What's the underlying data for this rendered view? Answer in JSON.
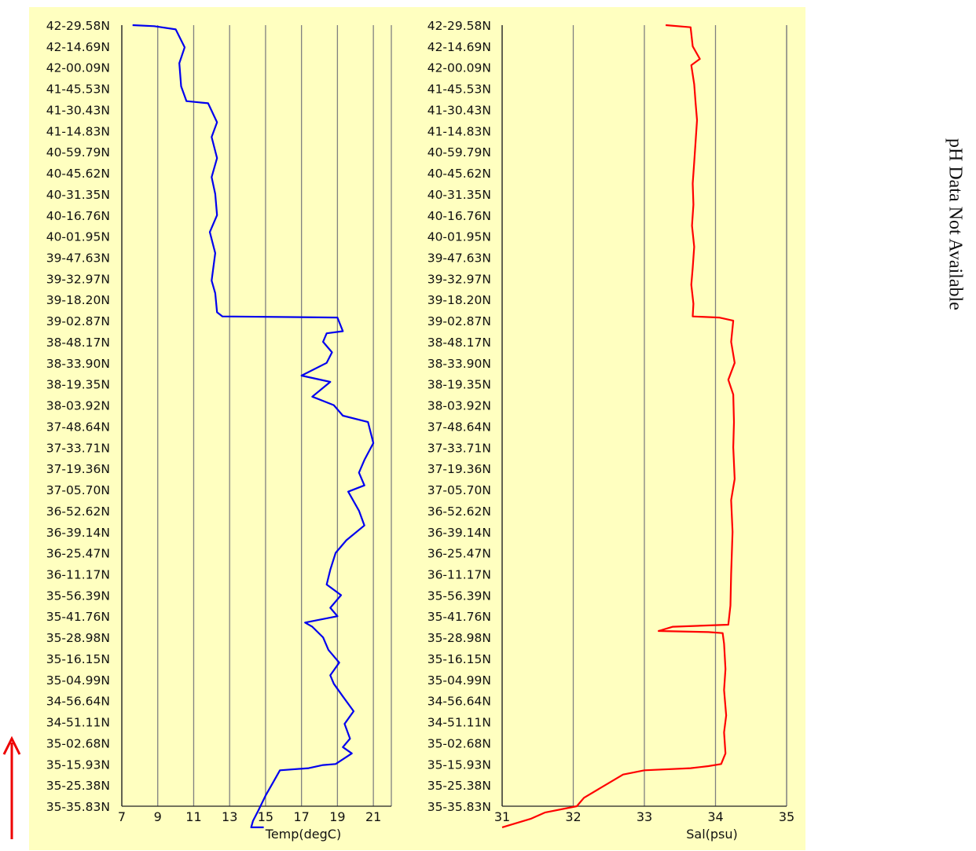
{
  "latitudes": [
    "42-29.58N",
    "42-14.69N",
    "42-00.09N",
    "41-45.53N",
    "41-30.43N",
    "41-14.83N",
    "40-59.79N",
    "40-45.62N",
    "40-31.35N",
    "40-16.76N",
    "40-01.95N",
    "39-47.63N",
    "39-32.97N",
    "39-18.20N",
    "39-02.87N",
    "38-48.17N",
    "38-33.90N",
    "38-19.35N",
    "38-03.92N",
    "37-48.64N",
    "37-33.71N",
    "37-19.36N",
    "37-05.70N",
    "36-52.62N",
    "36-39.14N",
    "36-25.47N",
    "36-11.17N",
    "35-56.39N",
    "35-41.76N",
    "35-28.98N",
    "35-16.15N",
    "35-04.99N",
    "34-56.64N",
    "34-51.11N",
    "35-02.68N",
    "35-15.93N",
    "35-25.38N",
    "35-35.83N"
  ],
  "ph_note": "pH Data Not Available",
  "colors": {
    "panel_bg": "#ffffc0",
    "temp_line": "#0000ee",
    "sal_line": "#ff0000",
    "arrow": "#ee0000",
    "grid": "#808080"
  },
  "direction_indicator": "arrow-up-icon",
  "chart_data": [
    {
      "type": "line",
      "xlabel": "Temp(degC)",
      "ylabel": "",
      "x_ticks": [
        7,
        9,
        11,
        13,
        15,
        17,
        19,
        21
      ],
      "xlim": [
        7,
        22
      ],
      "grid": true,
      "categories_ref": "latitudes",
      "series": [
        {
          "color": "#0000ee",
          "points": [
            [
              7.6,
              0
            ],
            [
              8.8,
              0.05
            ],
            [
              10.0,
              0.2
            ],
            [
              10.5,
              1.05
            ],
            [
              10.2,
              1.8
            ],
            [
              10.3,
              2.9
            ],
            [
              10.6,
              3.6
            ],
            [
              11.8,
              3.7
            ],
            [
              12.3,
              4.6
            ],
            [
              12.0,
              5.3
            ],
            [
              12.3,
              6.3
            ],
            [
              12.0,
              7.2
            ],
            [
              12.2,
              8.0
            ],
            [
              12.3,
              9.0
            ],
            [
              11.9,
              9.8
            ],
            [
              12.2,
              10.8
            ],
            [
              12.0,
              12.1
            ],
            [
              12.2,
              12.7
            ],
            [
              12.3,
              13.6
            ],
            [
              12.6,
              13.8
            ],
            [
              19.0,
              13.85
            ],
            [
              19.3,
              14.5
            ],
            [
              18.4,
              14.6
            ],
            [
              18.2,
              15.0
            ],
            [
              18.7,
              15.5
            ],
            [
              18.4,
              16.0
            ],
            [
              17.0,
              16.6
            ],
            [
              18.6,
              16.9
            ],
            [
              17.6,
              17.6
            ],
            [
              18.8,
              18.0
            ],
            [
              19.3,
              18.5
            ],
            [
              20.7,
              18.8
            ],
            [
              21.0,
              19.8
            ],
            [
              20.5,
              20.6
            ],
            [
              20.2,
              21.2
            ],
            [
              20.5,
              21.8
            ],
            [
              19.6,
              22.1
            ],
            [
              20.2,
              23.0
            ],
            [
              20.5,
              23.7
            ],
            [
              19.5,
              24.4
            ],
            [
              18.9,
              25.0
            ],
            [
              18.6,
              25.8
            ],
            [
              18.4,
              26.5
            ],
            [
              19.2,
              27.0
            ],
            [
              18.6,
              27.6
            ],
            [
              19.0,
              28.0
            ],
            [
              17.2,
              28.3
            ],
            [
              17.6,
              28.5
            ],
            [
              18.2,
              29.0
            ],
            [
              18.5,
              29.6
            ],
            [
              19.1,
              30.2
            ],
            [
              18.6,
              30.8
            ],
            [
              18.8,
              31.2
            ],
            [
              19.3,
              31.8
            ],
            [
              19.9,
              32.5
            ],
            [
              19.4,
              33.1
            ],
            [
              19.7,
              33.8
            ],
            [
              19.3,
              34.2
            ],
            [
              19.8,
              34.5
            ],
            [
              18.9,
              35.0
            ],
            [
              18.2,
              35.05
            ],
            [
              17.4,
              35.2
            ],
            [
              15.8,
              35.3
            ],
            [
              15.4,
              35.9
            ],
            [
              15.0,
              36.5
            ],
            [
              14.6,
              37.2
            ],
            [
              14.3,
              37.7
            ],
            [
              14.2,
              38.0
            ],
            [
              14.9,
              38.0
            ]
          ]
        }
      ]
    },
    {
      "type": "line",
      "xlabel": "Sal(psu)",
      "ylabel": "",
      "x_ticks": [
        31,
        32,
        33,
        34,
        35
      ],
      "xlim": [
        31,
        35
      ],
      "grid": true,
      "categories_ref": "latitudes",
      "series": [
        {
          "color": "#ff0000",
          "points": [
            [
              33.3,
              0
            ],
            [
              33.65,
              0.1
            ],
            [
              33.68,
              1.0
            ],
            [
              33.78,
              1.6
            ],
            [
              33.66,
              1.9
            ],
            [
              33.7,
              2.8
            ],
            [
              33.72,
              3.7
            ],
            [
              33.74,
              4.5
            ],
            [
              33.72,
              5.5
            ],
            [
              33.7,
              6.5
            ],
            [
              33.68,
              7.5
            ],
            [
              33.69,
              8.5
            ],
            [
              33.67,
              9.5
            ],
            [
              33.7,
              10.5
            ],
            [
              33.68,
              11.5
            ],
            [
              33.66,
              12.3
            ],
            [
              33.69,
              13.2
            ],
            [
              33.68,
              13.8
            ],
            [
              34.05,
              13.85
            ],
            [
              34.25,
              14.0
            ],
            [
              34.22,
              15.0
            ],
            [
              34.27,
              16.0
            ],
            [
              34.18,
              16.8
            ],
            [
              34.25,
              17.5
            ],
            [
              34.26,
              18.8
            ],
            [
              34.25,
              20.0
            ],
            [
              34.27,
              21.5
            ],
            [
              34.22,
              22.5
            ],
            [
              34.24,
              24.0
            ],
            [
              34.22,
              26.0
            ],
            [
              34.21,
              27.5
            ],
            [
              34.18,
              28.4
            ],
            [
              33.4,
              28.5
            ],
            [
              33.2,
              28.7
            ],
            [
              33.9,
              28.75
            ],
            [
              34.1,
              28.8
            ],
            [
              34.12,
              29.3
            ],
            [
              34.14,
              30.5
            ],
            [
              34.12,
              31.5
            ],
            [
              34.15,
              32.7
            ],
            [
              34.12,
              33.5
            ],
            [
              34.14,
              34.5
            ],
            [
              34.08,
              35.0
            ],
            [
              33.9,
              35.1
            ],
            [
              33.65,
              35.2
            ],
            [
              33.0,
              35.3
            ],
            [
              32.7,
              35.5
            ],
            [
              32.5,
              35.9
            ],
            [
              32.15,
              36.6
            ],
            [
              32.05,
              37.0
            ],
            [
              31.6,
              37.3
            ],
            [
              31.4,
              37.6
            ],
            [
              31.1,
              37.9
            ],
            [
              31.0,
              38.0
            ]
          ]
        }
      ]
    }
  ]
}
